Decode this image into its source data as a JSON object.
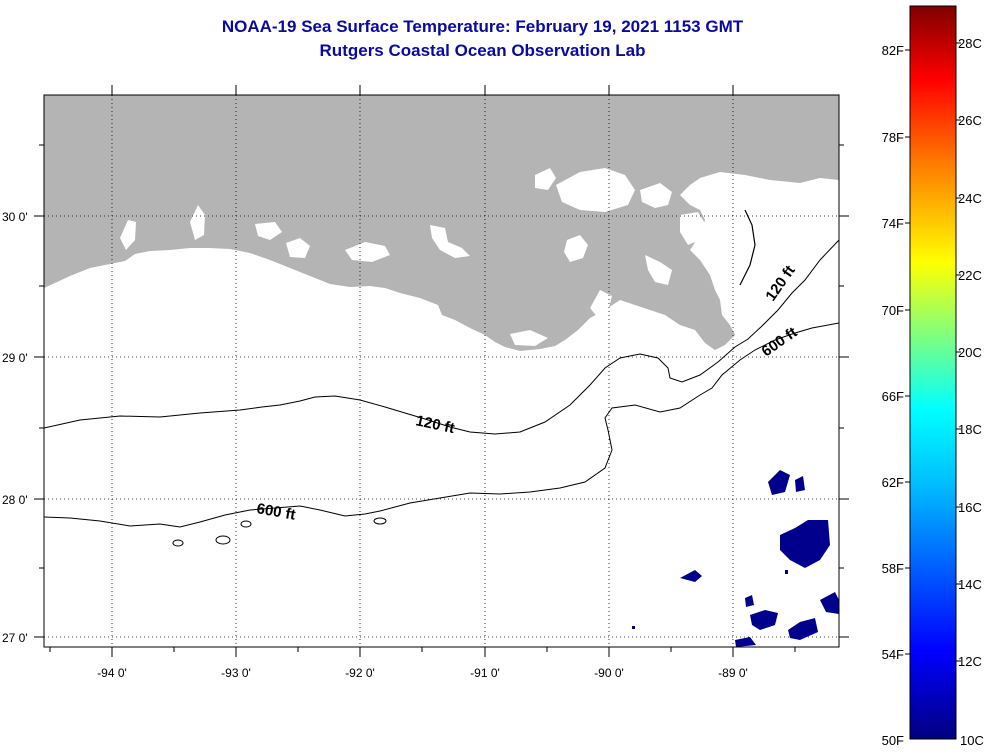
{
  "header": {
    "title": "NOAA-19 Sea Surface Temperature:  February 19, 2021 1153 GMT",
    "subtitle": "Rutgers Coastal Ocean Observation Lab"
  },
  "map": {
    "lat_labels": [
      "30 0'",
      "29 0'",
      "28 0'",
      "27 0'"
    ],
    "lon_labels": [
      "-94 0'",
      "-93 0'",
      "-92 0'",
      "-91 0'",
      "-90 0'",
      "-89 0'"
    ],
    "contour_labels": [
      "120 ft",
      "120 ft",
      "600 ft",
      "600 ft"
    ],
    "land_color": "#b4b4b4",
    "sst_color": "#00008c"
  },
  "colorbar": {
    "fahrenheit_labels": [
      "82F",
      "78F",
      "74F",
      "70F",
      "66F",
      "62F",
      "58F",
      "54F",
      "50F"
    ],
    "celsius_labels": [
      "28C",
      "26C",
      "24C",
      "22C",
      "20C",
      "18C",
      "16C",
      "14C",
      "12C",
      "10C"
    ],
    "colors": [
      "#00007f",
      "#0000ff",
      "#00bfff",
      "#00ffff",
      "#7fff7f",
      "#ffff00",
      "#ff8000",
      "#ff0000",
      "#7f0000"
    ]
  }
}
